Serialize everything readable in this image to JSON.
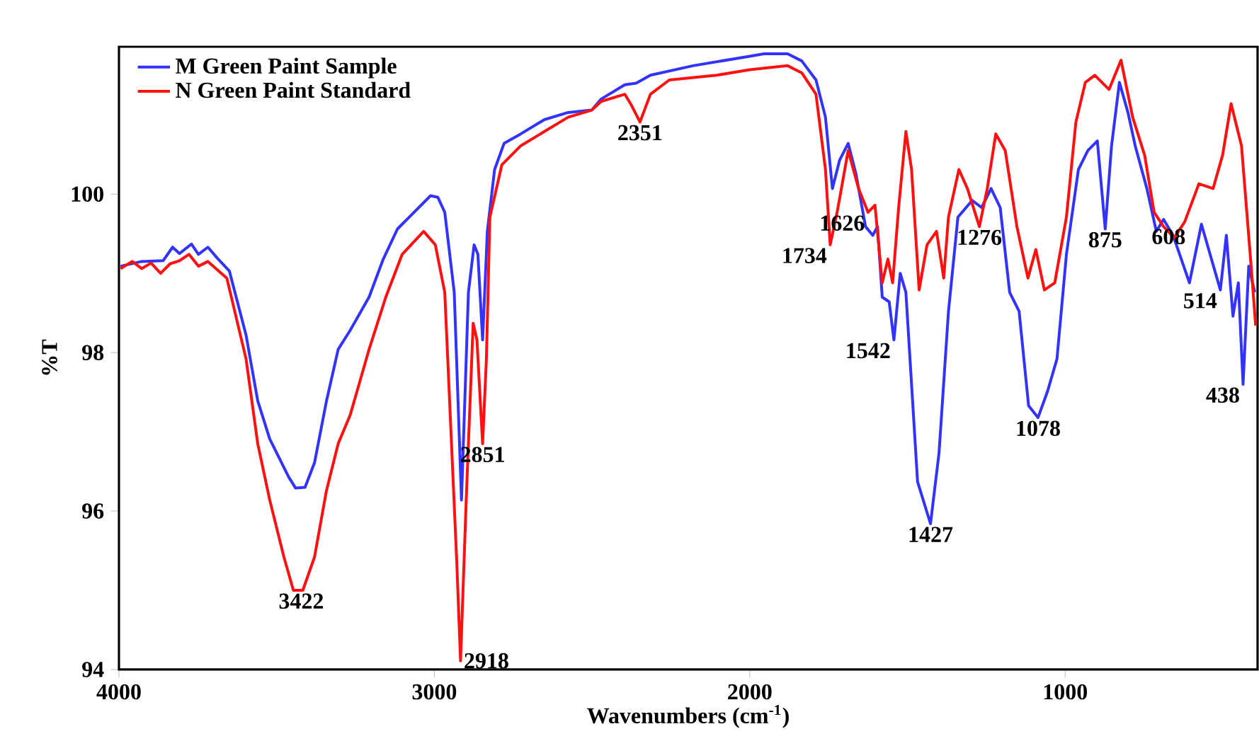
{
  "chart_data": {
    "type": "line",
    "xlabel": "Wavenumbers (cm$^{-1}$)",
    "ylabel": "%T",
    "xlim": [
      4000,
      390
    ],
    "ylim": [
      94,
      101.86
    ],
    "xticks": [
      4000,
      3000,
      2000,
      1000
    ],
    "yticks": [
      94,
      96,
      98,
      100
    ],
    "legend": "top left",
    "grid": false,
    "marker": "none",
    "line_style": "solid",
    "series": [
      {
        "name": "M  Green Paint Sample",
        "color": "#3333ff",
        "x": [
          3995,
          3928,
          3860,
          3830,
          3808,
          3770,
          3748,
          3718,
          3688,
          3650,
          3597,
          3560,
          3522,
          3462,
          3440,
          3410,
          3380,
          3342,
          3305,
          3267,
          3207,
          3162,
          3117,
          3072,
          3012,
          2989,
          2967,
          2937,
          2914,
          2892,
          2874,
          2862,
          2847,
          2832,
          2809,
          2779,
          2726,
          2651,
          2576,
          2501,
          2471,
          2396,
          2360,
          2315,
          2180,
          2000,
          1955,
          1880,
          1835,
          1790,
          1760,
          1738,
          1715,
          1688,
          1663,
          1633,
          1610,
          1595,
          1580,
          1558,
          1543,
          1523,
          1505,
          1468,
          1427,
          1400,
          1370,
          1340,
          1295,
          1265,
          1235,
          1206,
          1176,
          1146,
          1116,
          1086,
          1056,
          1026,
          996,
          958,
          928,
          898,
          873,
          853,
          828,
          801,
          778,
          741,
          711,
          688,
          658,
          606,
          568,
          508,
          489,
          468,
          451,
          436,
          418,
          399
        ],
        "values": [
          99.09,
          99.15,
          99.16,
          99.33,
          99.25,
          99.37,
          99.24,
          99.33,
          99.19,
          99.03,
          98.22,
          97.39,
          96.91,
          96.43,
          96.29,
          96.3,
          96.61,
          97.39,
          98.04,
          98.28,
          98.7,
          99.18,
          99.56,
          99.74,
          99.98,
          99.96,
          99.77,
          98.76,
          96.14,
          98.76,
          99.36,
          99.24,
          98.16,
          99.53,
          100.31,
          100.64,
          100.76,
          100.94,
          101.03,
          101.06,
          101.2,
          101.38,
          101.4,
          101.5,
          101.62,
          101.74,
          101.77,
          101.77,
          101.68,
          101.44,
          100.97,
          100.07,
          100.43,
          100.64,
          100.25,
          99.59,
          99.48,
          99.59,
          98.7,
          98.64,
          98.16,
          99.0,
          98.76,
          96.37,
          95.84,
          96.73,
          98.52,
          99.71,
          99.92,
          99.83,
          100.07,
          99.83,
          98.76,
          98.52,
          97.33,
          97.18,
          97.51,
          97.92,
          99.24,
          100.31,
          100.55,
          100.67,
          99.56,
          100.61,
          101.41,
          101.03,
          100.61,
          100.07,
          99.53,
          99.68,
          99.48,
          98.88,
          99.62,
          98.79,
          99.48,
          98.46,
          98.88,
          97.6,
          99.09,
          98.76
        ]
      },
      {
        "name": "N   Green Paint Standard",
        "color": "#ff1111",
        "x": [
          3995,
          3958,
          3928,
          3898,
          3868,
          3838,
          3808,
          3778,
          3748,
          3718,
          3658,
          3597,
          3560,
          3522,
          3477,
          3447,
          3417,
          3380,
          3342,
          3305,
          3267,
          3207,
          3154,
          3102,
          3034,
          2997,
          2967,
          2929,
          2917,
          2899,
          2877,
          2865,
          2847,
          2835,
          2824,
          2786,
          2726,
          2651,
          2576,
          2501,
          2471,
          2396,
          2375,
          2348,
          2315,
          2255,
          2105,
          2000,
          1880,
          1835,
          1790,
          1760,
          1745,
          1723,
          1688,
          1655,
          1625,
          1603,
          1580,
          1562,
          1547,
          1528,
          1505,
          1487,
          1463,
          1438,
          1408,
          1385,
          1370,
          1337,
          1310,
          1272,
          1247,
          1220,
          1190,
          1153,
          1118,
          1093,
          1066,
          1033,
          996,
          966,
          936,
          906,
          861,
          823,
          786,
          748,
          718,
          688,
          654,
          621,
          576,
          531,
          501,
          474,
          441,
          411,
          396
        ],
        "values": [
          99.06,
          99.15,
          99.06,
          99.13,
          99.0,
          99.12,
          99.16,
          99.24,
          99.09,
          99.15,
          98.94,
          97.92,
          96.85,
          96.14,
          95.42,
          95.0,
          95.0,
          95.42,
          96.26,
          96.85,
          97.21,
          98.04,
          98.7,
          99.24,
          99.53,
          99.36,
          98.76,
          95.36,
          94.11,
          96.14,
          98.37,
          98.16,
          96.85,
          97.92,
          99.71,
          100.37,
          100.61,
          100.79,
          100.97,
          101.06,
          101.17,
          101.26,
          101.12,
          100.91,
          101.26,
          101.44,
          101.5,
          101.57,
          101.62,
          101.53,
          101.26,
          100.31,
          99.36,
          99.77,
          100.55,
          100.07,
          99.77,
          99.86,
          98.88,
          99.18,
          98.88,
          99.83,
          100.79,
          100.31,
          98.79,
          99.36,
          99.53,
          98.94,
          99.71,
          100.31,
          100.07,
          99.59,
          100.07,
          100.76,
          100.55,
          99.59,
          98.94,
          99.3,
          98.79,
          98.88,
          99.71,
          100.91,
          101.41,
          101.5,
          101.32,
          101.69,
          100.97,
          100.49,
          99.77,
          99.59,
          99.45,
          99.65,
          100.13,
          100.07,
          100.49,
          101.14,
          100.61,
          99.12,
          98.34
        ]
      }
    ],
    "annotations": [
      {
        "text": "3422",
        "x": 3422,
        "y": 95.0
      },
      {
        "text": "2918",
        "x": 2917,
        "y": 94.11
      },
      {
        "text": "2851",
        "x": 2847,
        "y": 96.85
      },
      {
        "text": "2351",
        "x": 2348,
        "y": 100.91
      },
      {
        "text": "1734",
        "x": 1745,
        "y": 99.36
      },
      {
        "text": "1626",
        "x": 1625,
        "y": 99.77
      },
      {
        "text": "1542",
        "x": 1543,
        "y": 98.16
      },
      {
        "text": "1427",
        "x": 1427,
        "y": 95.84
      },
      {
        "text": "1276",
        "x": 1272,
        "y": 99.59
      },
      {
        "text": "1078",
        "x": 1086,
        "y": 97.18
      },
      {
        "text": "875",
        "x": 873,
        "y": 99.56
      },
      {
        "text": "608",
        "x": 608,
        "y": 99.6
      },
      {
        "text": "514",
        "x": 508,
        "y": 98.79
      },
      {
        "text": "438",
        "x": 436,
        "y": 97.6
      }
    ]
  }
}
